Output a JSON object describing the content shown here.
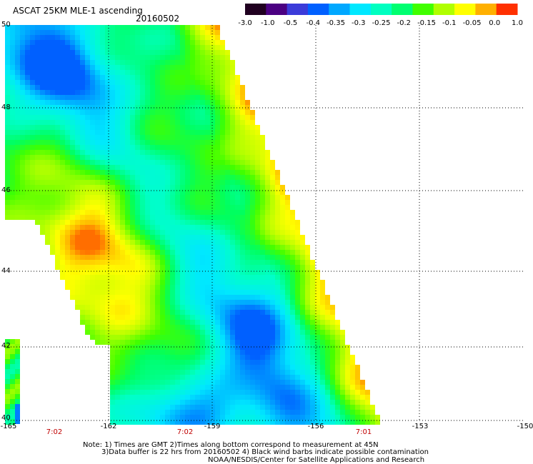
{
  "header": {
    "title": "ASCAT 25KM MLE-1 ascending",
    "date": "20160502"
  },
  "colorbar": {
    "labels": [
      "-3.0",
      "-1.0",
      "-0.5",
      "-0.4",
      "-0.35",
      "-0.3",
      "-0.25",
      "-0.2",
      "-0.15",
      "-0.1",
      "-0.05",
      "0.0",
      "1.0"
    ],
    "colors": [
      "#200020",
      "#4b0082",
      "#3b3bd9",
      "#0060ff",
      "#00a8ff",
      "#00e8ff",
      "#00ffc0",
      "#00ff70",
      "#40ff00",
      "#b0ff00",
      "#ffff00",
      "#ffb000",
      "#ff3000"
    ]
  },
  "map": {
    "lat_labels": [
      "50",
      "48",
      "46",
      "44",
      "42",
      "40"
    ],
    "lon_labels": [
      "-165",
      "-162",
      "-159",
      "-156",
      "-153",
      "-150"
    ],
    "time_labels": [
      "7:02",
      "7:02",
      "7:01"
    ],
    "lat_range": [
      40,
      50
    ],
    "lon_range": [
      -165,
      -150
    ]
  },
  "notes": {
    "line1": "Note: 1) Times are GMT 2)Times along bottom correspond to measurement at 45N",
    "line2": "3)Data buffer is 22 hrs from 20160502 4) Black wind barbs indicate possible contamination",
    "line3": "NOAA/NESDIS/Center for Satellite Applications and Research"
  }
}
